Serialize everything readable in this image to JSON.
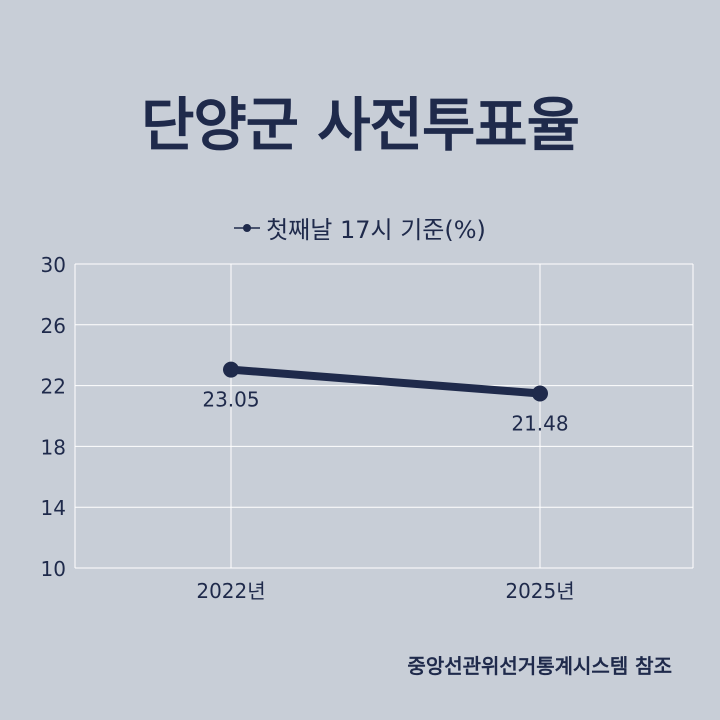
{
  "chart_data": {
    "type": "line",
    "title": "단양군 사전투표율",
    "categories": [
      "2022년",
      "2025년"
    ],
    "series": [
      {
        "name": "첫째날 17시 기준(%)",
        "values": [
          23.05,
          21.48
        ]
      }
    ],
    "data_labels": [
      "23.05",
      "21.48"
    ],
    "yticks": [
      "10",
      "14",
      "18",
      "22",
      "26",
      "30"
    ],
    "ylim": [
      10,
      30
    ],
    "grid": true,
    "legend_position": "top-center"
  },
  "source": "중앙선관위선거통계시스템 참조",
  "colors": {
    "background": "#c8ced7",
    "line": "#1f2a4b",
    "grid": "#ffffff"
  }
}
